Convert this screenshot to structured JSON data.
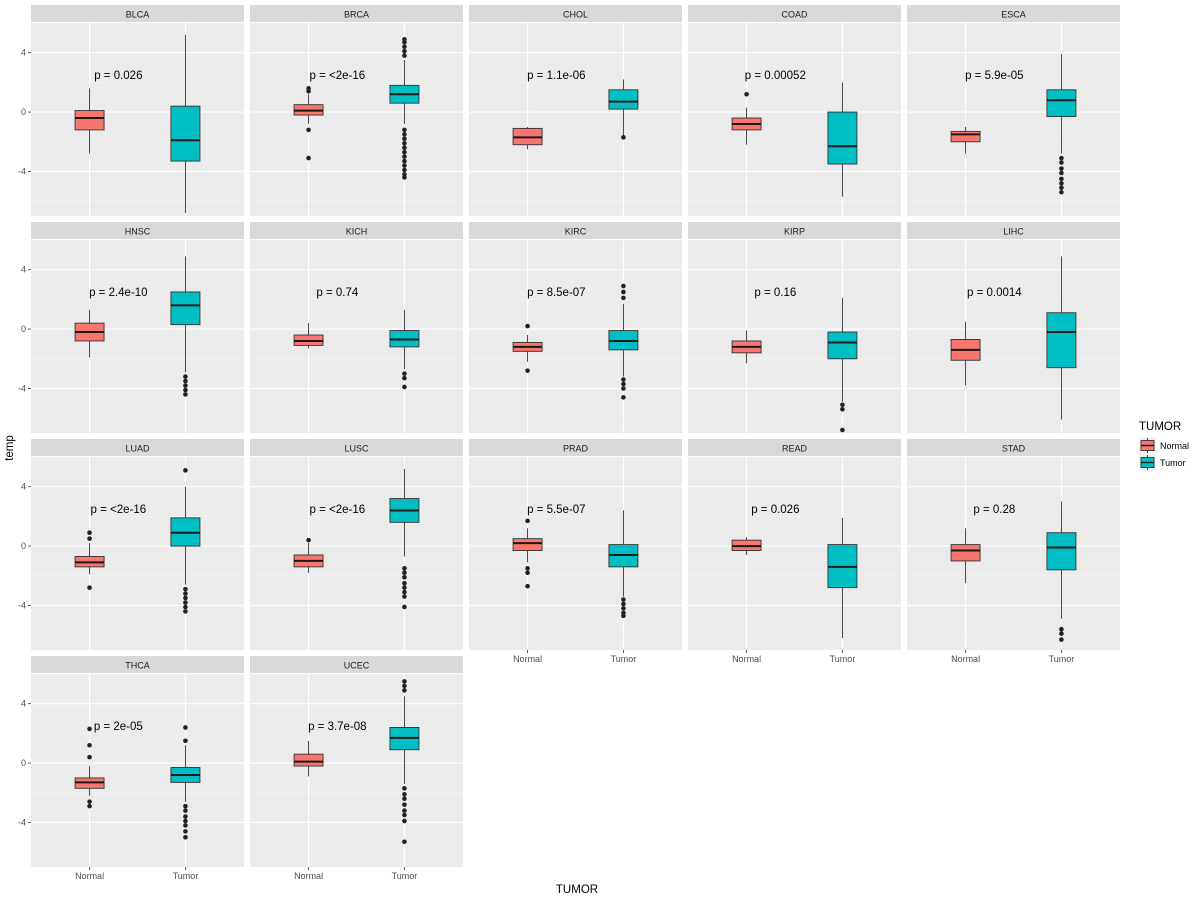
{
  "chart_data": {
    "type": "boxplot",
    "xlabel": "TUMOR",
    "ylabel": "temp",
    "ylim": [
      -7,
      6
    ],
    "y_ticks": [
      4,
      0,
      -4
    ],
    "x_categories": [
      "Normal",
      "Tumor"
    ],
    "legend": {
      "title": "TUMOR",
      "position": "right",
      "entries": [
        {
          "label": "Normal",
          "color": "#F8766D"
        },
        {
          "label": "Tumor",
          "color": "#00BFC4"
        }
      ]
    },
    "panels": [
      {
        "name": "BLCA",
        "p": "p = 0.026",
        "normal": {
          "q1": -1.2,
          "median": -0.4,
          "q3": 0.1,
          "lo": -2.8,
          "hi": 1.6,
          "out": []
        },
        "tumor": {
          "q1": -3.3,
          "median": -1.9,
          "q3": 0.4,
          "lo": -6.8,
          "hi": 5.2,
          "out": []
        }
      },
      {
        "name": "BRCA",
        "p": "p = <2e-16",
        "normal": {
          "q1": -0.2,
          "median": 0.1,
          "q3": 0.5,
          "lo": -0.8,
          "hi": 1.2,
          "out": [
            1.6,
            1.4,
            -1.2,
            -3.1
          ]
        },
        "tumor": {
          "q1": 0.6,
          "median": 1.2,
          "q3": 1.8,
          "lo": -0.8,
          "hi": 3.5,
          "out": [
            4.9,
            4.7,
            4.4,
            4.1,
            3.8,
            -1.2,
            -1.5,
            -1.8,
            -2.1,
            -2.4,
            -2.7,
            -3.0,
            -3.3,
            -3.6,
            -3.9,
            -4.2,
            -4.4
          ]
        }
      },
      {
        "name": "CHOL",
        "p": "p = 1.1e-06",
        "normal": {
          "q1": -2.2,
          "median": -1.7,
          "q3": -1.1,
          "lo": -2.5,
          "hi": -1.0,
          "out": []
        },
        "tumor": {
          "q1": 0.2,
          "median": 0.7,
          "q3": 1.5,
          "lo": -1.6,
          "hi": 2.2,
          "out": [
            -1.7
          ]
        }
      },
      {
        "name": "COAD",
        "p": "p = 0.00052",
        "normal": {
          "q1": -1.2,
          "median": -0.8,
          "q3": -0.4,
          "lo": -2.2,
          "hi": 0.3,
          "out": [
            1.2
          ]
        },
        "tumor": {
          "q1": -3.5,
          "median": -2.3,
          "q3": 0.0,
          "lo": -5.7,
          "hi": 2.0,
          "out": []
        }
      },
      {
        "name": "ESCA",
        "p": "p = 5.9e-05",
        "normal": {
          "q1": -2.0,
          "median": -1.5,
          "q3": -1.3,
          "lo": -2.8,
          "hi": -1.0,
          "out": []
        },
        "tumor": {
          "q1": -0.3,
          "median": 0.8,
          "q3": 1.5,
          "lo": -2.8,
          "hi": 3.9,
          "out": [
            -3.1,
            -3.4,
            -3.8,
            -4.1,
            -4.5,
            -4.8,
            -5.1,
            -5.4
          ]
        }
      },
      {
        "name": "HNSC",
        "p": "p = 2.4e-10",
        "normal": {
          "q1": -0.8,
          "median": -0.2,
          "q3": 0.4,
          "lo": -1.9,
          "hi": 1.3,
          "out": []
        },
        "tumor": {
          "q1": 0.3,
          "median": 1.6,
          "q3": 2.5,
          "lo": -2.9,
          "hi": 4.9,
          "out": [
            -3.2,
            -3.5,
            -3.8,
            -4.1,
            -4.4
          ]
        }
      },
      {
        "name": "KICH",
        "p": "p = 0.74",
        "normal": {
          "q1": -1.1,
          "median": -0.8,
          "q3": -0.4,
          "lo": -1.3,
          "hi": 0.4,
          "out": []
        },
        "tumor": {
          "q1": -1.2,
          "median": -0.7,
          "q3": -0.1,
          "lo": -2.7,
          "hi": 1.3,
          "out": [
            -3.0,
            -3.3,
            -3.9
          ]
        }
      },
      {
        "name": "KIRC",
        "p": "p = 8.5e-07",
        "normal": {
          "q1": -1.5,
          "median": -1.2,
          "q3": -0.9,
          "lo": -2.2,
          "hi": -0.4,
          "out": [
            0.2,
            -2.8
          ]
        },
        "tumor": {
          "q1": -1.4,
          "median": -0.8,
          "q3": -0.1,
          "lo": -3.2,
          "hi": 1.7,
          "out": [
            2.1,
            2.5,
            2.9,
            -3.4,
            -3.7,
            -4.0,
            -4.6
          ]
        }
      },
      {
        "name": "KIRP",
        "p": "p = 0.16",
        "normal": {
          "q1": -1.6,
          "median": -1.2,
          "q3": -0.8,
          "lo": -2.3,
          "hi": -0.1,
          "out": []
        },
        "tumor": {
          "q1": -2.0,
          "median": -0.9,
          "q3": -0.2,
          "lo": -4.9,
          "hi": 2.1,
          "out": [
            -5.1,
            -5.4,
            -6.8
          ]
        }
      },
      {
        "name": "LIHC",
        "p": "p = 0.0014",
        "normal": {
          "q1": -2.1,
          "median": -1.4,
          "q3": -0.7,
          "lo": -3.8,
          "hi": 0.5,
          "out": []
        },
        "tumor": {
          "q1": -2.6,
          "median": -0.2,
          "q3": 1.1,
          "lo": -6.1,
          "hi": 4.9,
          "out": []
        }
      },
      {
        "name": "LUAD",
        "p": "p = <2e-16",
        "normal": {
          "q1": -1.4,
          "median": -1.1,
          "q3": -0.7,
          "lo": -1.9,
          "hi": 0.2,
          "out": [
            0.5,
            0.9,
            -2.8
          ]
        },
        "tumor": {
          "q1": 0.0,
          "median": 0.9,
          "q3": 1.9,
          "lo": -2.6,
          "hi": 4.0,
          "out": [
            5.1,
            -2.9,
            -3.2,
            -3.5,
            -3.8,
            -4.1,
            -4.4
          ]
        }
      },
      {
        "name": "LUSC",
        "p": "p = <2e-16",
        "normal": {
          "q1": -1.4,
          "median": -1.0,
          "q3": -0.6,
          "lo": -1.8,
          "hi": 0.2,
          "out": [
            0.4
          ]
        },
        "tumor": {
          "q1": 1.6,
          "median": 2.4,
          "q3": 3.2,
          "lo": -0.7,
          "hi": 5.2,
          "out": [
            -1.5,
            -1.8,
            -2.1,
            -2.5,
            -2.8,
            -3.1,
            -3.4,
            -4.1
          ]
        }
      },
      {
        "name": "PRAD",
        "p": "p = 5.5e-07",
        "normal": {
          "q1": -0.3,
          "median": 0.2,
          "q3": 0.5,
          "lo": -1.1,
          "hi": 1.2,
          "out": [
            1.7,
            -1.5,
            -1.8,
            -2.7
          ]
        },
        "tumor": {
          "q1": -1.4,
          "median": -0.6,
          "q3": 0.1,
          "lo": -3.4,
          "hi": 2.4,
          "out": [
            -3.6,
            -3.9,
            -4.2,
            -4.5,
            -4.7
          ]
        }
      },
      {
        "name": "READ",
        "p": "p = 0.026",
        "normal": {
          "q1": -0.3,
          "median": 0.0,
          "q3": 0.4,
          "lo": -0.6,
          "hi": 0.6,
          "out": []
        },
        "tumor": {
          "q1": -2.8,
          "median": -1.4,
          "q3": 0.1,
          "lo": -6.2,
          "hi": 1.9,
          "out": []
        }
      },
      {
        "name": "STAD",
        "p": "p = 0.28",
        "normal": {
          "q1": -1.0,
          "median": -0.3,
          "q3": 0.1,
          "lo": -2.5,
          "hi": 1.2,
          "out": []
        },
        "tumor": {
          "q1": -1.6,
          "median": -0.1,
          "q3": 0.9,
          "lo": -4.9,
          "hi": 3.0,
          "out": [
            -5.6,
            -5.9,
            -6.3
          ]
        }
      },
      {
        "name": "THCA",
        "p": "p = 2e-05",
        "normal": {
          "q1": -1.7,
          "median": -1.3,
          "q3": -1.0,
          "lo": -2.2,
          "hi": -0.2,
          "out": [
            0.4,
            1.2,
            2.3,
            -2.6,
            -2.9
          ]
        },
        "tumor": {
          "q1": -1.3,
          "median": -0.8,
          "q3": -0.3,
          "lo": -2.6,
          "hi": 1.2,
          "out": [
            1.5,
            2.4,
            -2.9,
            -3.2,
            -3.6,
            -3.9,
            -4.2,
            -4.6,
            -5.0
          ]
        }
      },
      {
        "name": "UCEC",
        "p": "p = 3.7e-08",
        "normal": {
          "q1": -0.2,
          "median": 0.1,
          "q3": 0.6,
          "lo": -0.9,
          "hi": 1.5,
          "out": []
        },
        "tumor": {
          "q1": 0.9,
          "median": 1.7,
          "q3": 2.4,
          "lo": -1.4,
          "hi": 4.5,
          "out": [
            5.5,
            5.2,
            4.9,
            -1.7,
            -2.1,
            -2.4,
            -2.8,
            -3.2,
            -3.5,
            -3.9,
            -5.3
          ]
        }
      }
    ]
  }
}
